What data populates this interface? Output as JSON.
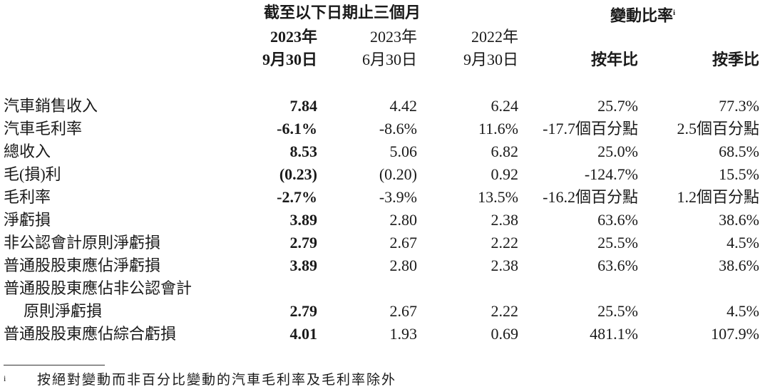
{
  "header": {
    "period_title": "截至以下日期止三個月",
    "change_title": "變動比率",
    "change_note_mark": "i",
    "columns": [
      {
        "year": "2023年",
        "date": "9月30日"
      },
      {
        "year": "2023年",
        "date": "6月30日"
      },
      {
        "year": "2022年",
        "date": "9月30日"
      },
      {
        "label": "按年比"
      },
      {
        "label": "按季比"
      }
    ]
  },
  "table": {
    "rows": [
      {
        "label": [
          "汽車銷售收入"
        ],
        "values": [
          "7.84",
          "4.42",
          "6.24",
          "25.7%",
          "77.3%"
        ]
      },
      {
        "label": [
          "汽車毛利率"
        ],
        "values": [
          "-6.1%",
          "-8.6%",
          "11.6%",
          "-17.7個百分點",
          "2.5個百分點"
        ]
      },
      {
        "label": [
          "總收入"
        ],
        "values": [
          "8.53",
          "5.06",
          "6.82",
          "25.0%",
          "68.5%"
        ]
      },
      {
        "label": [
          "毛(損)利"
        ],
        "values": [
          "(0.23)",
          "(0.20)",
          "0.92",
          "-124.7%",
          "15.5%"
        ]
      },
      {
        "label": [
          "毛利率"
        ],
        "values": [
          "-2.7%",
          "-3.9%",
          "13.5%",
          "-16.2個百分點",
          "1.2個百分點"
        ]
      },
      {
        "label": [
          "淨虧損"
        ],
        "values": [
          "3.89",
          "2.80",
          "2.38",
          "63.6%",
          "38.6%"
        ]
      },
      {
        "label": [
          "非公認會計原則淨虧損"
        ],
        "values": [
          "2.79",
          "2.67",
          "2.22",
          "25.5%",
          "4.5%"
        ]
      },
      {
        "label": [
          "普通股股東應佔淨虧損"
        ],
        "values": [
          "3.89",
          "2.80",
          "2.38",
          "63.6%",
          "38.6%"
        ]
      },
      {
        "label": [
          "普通股股東應佔非公認會計",
          "原則淨虧損"
        ],
        "values": [
          "2.79",
          "2.67",
          "2.22",
          "25.5%",
          "4.5%"
        ]
      },
      {
        "label": [
          "普通股股東應佔綜合虧損"
        ],
        "values": [
          "4.01",
          "1.93",
          "0.69",
          "481.1%",
          "107.9%"
        ]
      }
    ]
  },
  "footnote": {
    "mark": "i",
    "text": "按絕對變動而非百分比變動的汽車毛利率及毛利率除外"
  }
}
